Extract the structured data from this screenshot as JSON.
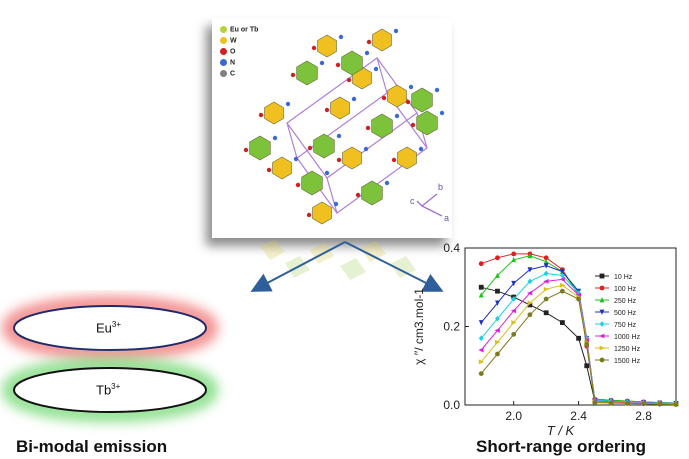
{
  "legend": [
    {
      "label": "Eu or Tb",
      "color": "#b8d23a"
    },
    {
      "label": "W",
      "color": "#f0c020"
    },
    {
      "label": "O",
      "color": "#d02020"
    },
    {
      "label": "N",
      "color": "#3a6ad8"
    },
    {
      "label": "C",
      "color": "#808080"
    }
  ],
  "axes_labels": {
    "b": "b",
    "c": "c",
    "a": "a"
  },
  "emission": {
    "eu_label": "Eu",
    "eu_sup": "3+",
    "tb_label": "Tb",
    "tb_sup": "3+",
    "caption": "Bi-modal emission"
  },
  "caption_right": "Short-range ordering",
  "colors": {
    "arrow": "#2f5f9a",
    "eu_glow": "#f07070",
    "tb_glow": "#6fd86f"
  },
  "chart_data": {
    "type": "line",
    "xlabel": "T / K",
    "ylabel": "χ ′′/ cm3.mol-1",
    "xlim": [
      1.7,
      3.0
    ],
    "ylim": [
      0.0,
      0.4
    ],
    "xticks": [
      "2.0",
      "2.4",
      "2.8"
    ],
    "yticks": [
      "0.0",
      "0.2",
      "0.4"
    ],
    "legend_position": "right",
    "series": [
      {
        "name": "10 Hz",
        "color": "#222222",
        "marker": "square",
        "x": [
          1.8,
          1.9,
          2.0,
          2.1,
          2.2,
          2.3,
          2.4,
          2.45,
          2.5,
          2.6,
          2.7,
          2.8,
          2.9,
          3.0
        ],
        "y": [
          0.3,
          0.29,
          0.275,
          0.255,
          0.235,
          0.21,
          0.17,
          0.1,
          0.01,
          0.008,
          0.006,
          0.005,
          0.004,
          0.003
        ]
      },
      {
        "name": "100 Hz",
        "color": "#e02020",
        "marker": "circle",
        "x": [
          1.8,
          1.9,
          2.0,
          2.1,
          2.2,
          2.3,
          2.4,
          2.45,
          2.5,
          2.6,
          2.7,
          2.8,
          2.9,
          3.0
        ],
        "y": [
          0.36,
          0.375,
          0.385,
          0.385,
          0.375,
          0.345,
          0.28,
          0.15,
          0.015,
          0.012,
          0.01,
          0.008,
          0.006,
          0.005
        ]
      },
      {
        "name": "250 Hz",
        "color": "#20c020",
        "marker": "triangle",
        "x": [
          1.8,
          1.9,
          2.0,
          2.1,
          2.2,
          2.3,
          2.4,
          2.45,
          2.5,
          2.6,
          2.7,
          2.8,
          2.9,
          3.0
        ],
        "y": [
          0.28,
          0.33,
          0.37,
          0.38,
          0.365,
          0.34,
          0.285,
          0.16,
          0.015,
          0.012,
          0.01,
          0.008,
          0.006,
          0.005
        ]
      },
      {
        "name": "500 Hz",
        "color": "#2030c0",
        "marker": "down-triangle",
        "x": [
          1.8,
          1.9,
          2.0,
          2.1,
          2.2,
          2.3,
          2.4,
          2.45,
          2.5,
          2.6,
          2.7,
          2.8,
          2.9,
          3.0
        ],
        "y": [
          0.21,
          0.26,
          0.31,
          0.345,
          0.355,
          0.34,
          0.29,
          0.17,
          0.012,
          0.01,
          0.008,
          0.006,
          0.005,
          0.004
        ]
      },
      {
        "name": "750 Hz",
        "color": "#20d0e0",
        "marker": "diamond",
        "x": [
          1.8,
          1.9,
          2.0,
          2.1,
          2.2,
          2.3,
          2.4,
          2.45,
          2.5,
          2.6,
          2.7,
          2.8,
          2.9,
          3.0
        ],
        "y": [
          0.17,
          0.22,
          0.27,
          0.315,
          0.335,
          0.33,
          0.285,
          0.17,
          0.012,
          0.01,
          0.008,
          0.006,
          0.005,
          0.004
        ]
      },
      {
        "name": "1000 Hz",
        "color": "#e020e0",
        "marker": "triangle-left",
        "x": [
          1.8,
          1.9,
          2.0,
          2.1,
          2.2,
          2.3,
          2.4,
          2.45,
          2.5,
          2.6,
          2.7,
          2.8,
          2.9,
          3.0
        ],
        "y": [
          0.14,
          0.19,
          0.24,
          0.285,
          0.315,
          0.32,
          0.28,
          0.165,
          0.01,
          0.008,
          0.006,
          0.005,
          0.004,
          0.003
        ]
      },
      {
        "name": "1250 Hz",
        "color": "#d8c020",
        "marker": "triangle-right",
        "x": [
          1.8,
          1.9,
          2.0,
          2.1,
          2.2,
          2.3,
          2.4,
          2.45,
          2.5,
          2.6,
          2.7,
          2.8,
          2.9,
          3.0
        ],
        "y": [
          0.11,
          0.16,
          0.21,
          0.26,
          0.295,
          0.305,
          0.275,
          0.16,
          0.008,
          0.006,
          0.005,
          0.004,
          0.003,
          0.002
        ]
      },
      {
        "name": "1500 Hz",
        "color": "#7a7a20",
        "marker": "hexagon",
        "x": [
          1.8,
          1.9,
          2.0,
          2.1,
          2.2,
          2.3,
          2.4,
          2.45,
          2.5,
          2.6,
          2.7,
          2.8,
          2.9,
          3.0
        ],
        "y": [
          0.08,
          0.13,
          0.18,
          0.23,
          0.27,
          0.29,
          0.27,
          0.155,
          0.006,
          0.005,
          0.004,
          0.003,
          0.002,
          0.001
        ]
      }
    ]
  }
}
